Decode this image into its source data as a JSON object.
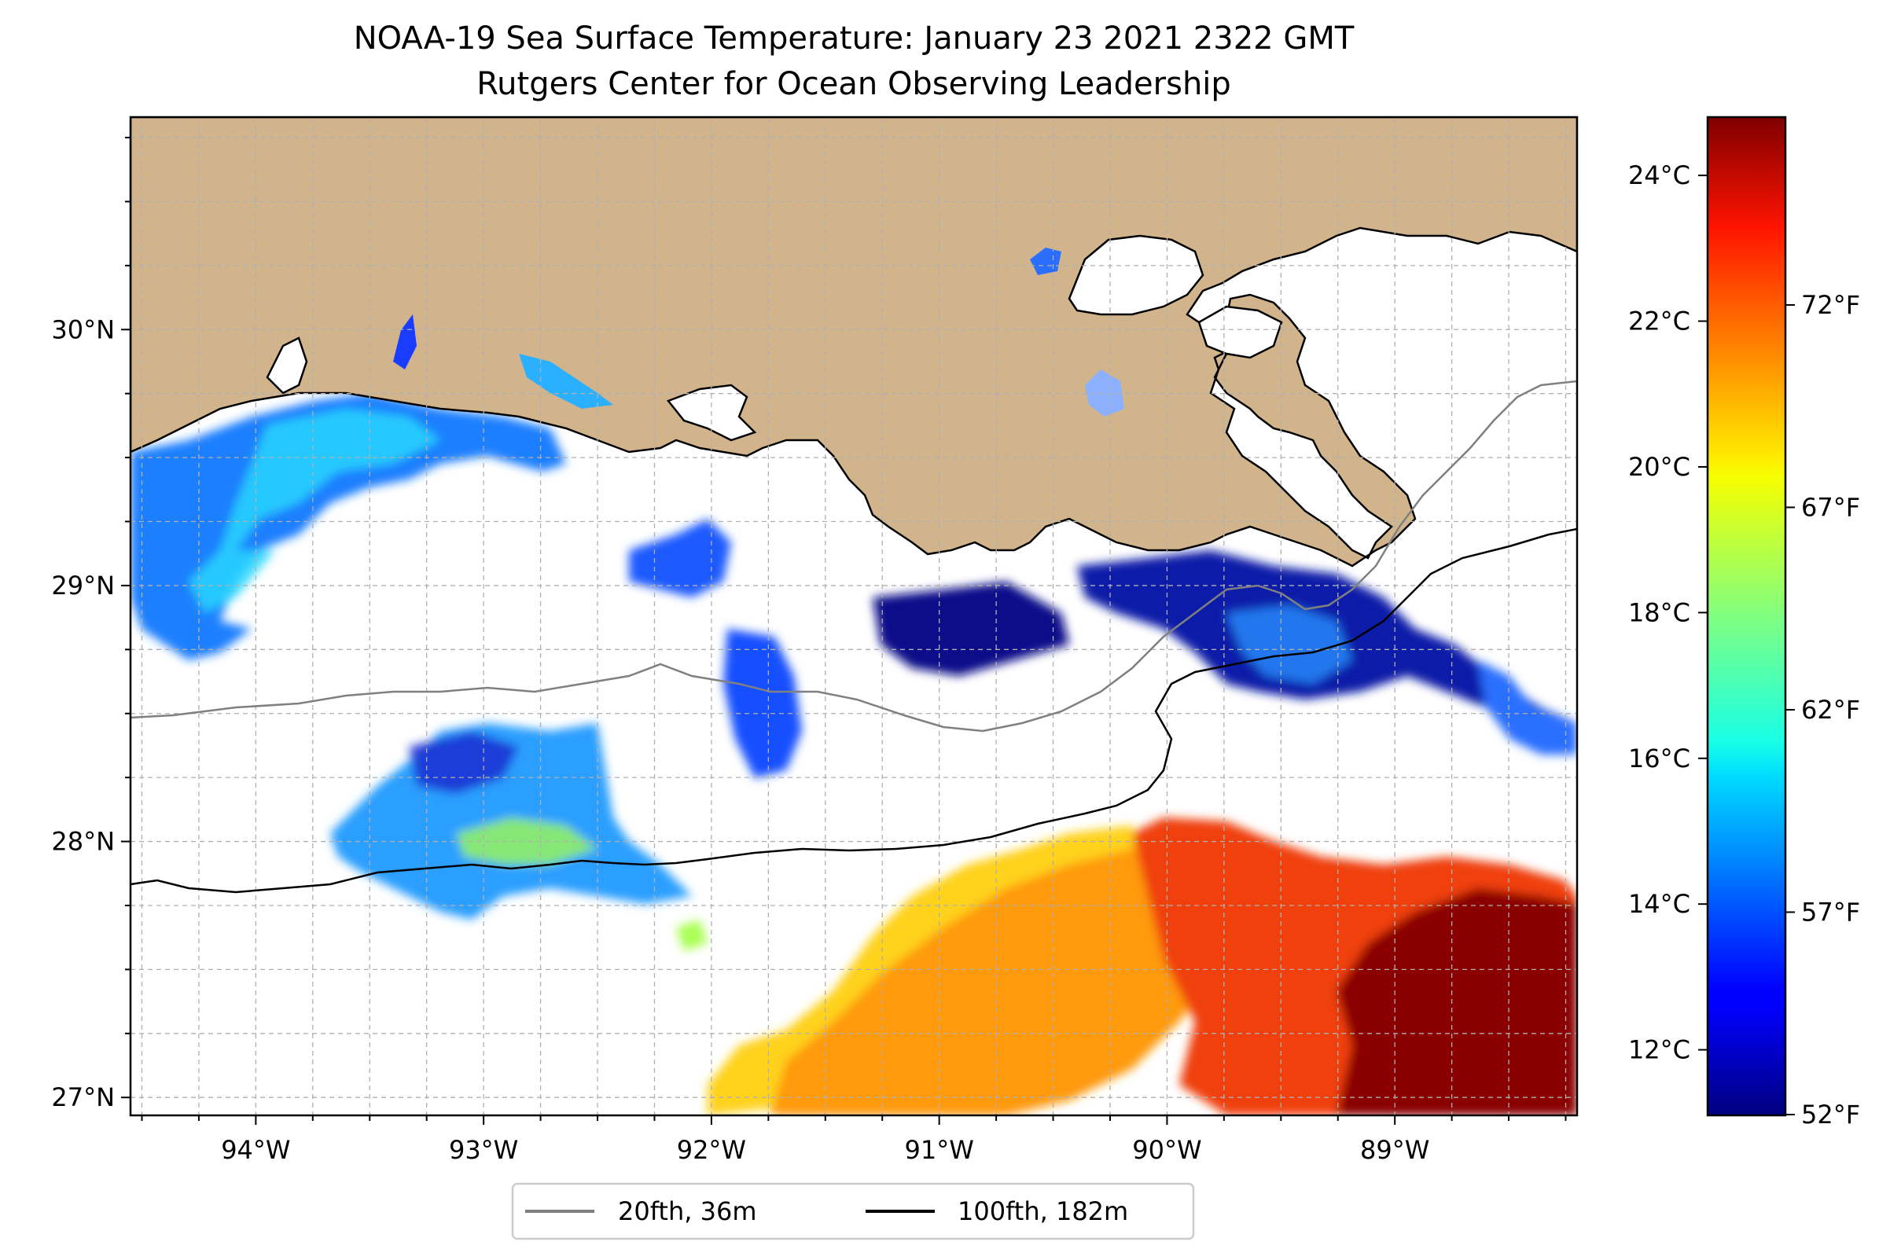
{
  "title_line1": "NOAA-19 Sea Surface Temperature: January 23 2021 2322 GMT",
  "title_line2": "Rutgers Center for Ocean Observing Leadership",
  "colors": {
    "land": "#d2b48c",
    "coast": "#000000",
    "isobath_20": "#808080",
    "isobath_100": "#000000",
    "grid": "#b0b0b0"
  },
  "map": {
    "lon_range": [
      -94.55,
      -88.2
    ],
    "lat_range": [
      26.93,
      30.83
    ],
    "lon_ticks": [
      {
        "value": -94,
        "label": "94°W"
      },
      {
        "value": -93,
        "label": "93°W"
      },
      {
        "value": -92,
        "label": "92°W"
      },
      {
        "value": -91,
        "label": "91°W"
      },
      {
        "value": -90,
        "label": "90°W"
      },
      {
        "value": -89,
        "label": "89°W"
      }
    ],
    "lat_ticks": [
      {
        "value": 27,
        "label": "27°N"
      },
      {
        "value": 28,
        "label": "28°N"
      },
      {
        "value": 29,
        "label": "29°N"
      },
      {
        "value": 30,
        "label": "30°N"
      }
    ]
  },
  "colorbar": {
    "celsius_ticks": [
      {
        "value": 12,
        "label": "12°C"
      },
      {
        "value": 14,
        "label": "14°C"
      },
      {
        "value": 16,
        "label": "16°C"
      },
      {
        "value": 18,
        "label": "18°C"
      },
      {
        "value": 20,
        "label": "20°C"
      },
      {
        "value": 22,
        "label": "22°C"
      },
      {
        "value": 24,
        "label": "24°C"
      }
    ],
    "fahrenheit_ticks": [
      {
        "value": 52,
        "label": "52°F"
      },
      {
        "value": 57,
        "label": "57°F"
      },
      {
        "value": 62,
        "label": "62°F"
      },
      {
        "value": 67,
        "label": "67°F"
      },
      {
        "value": 72,
        "label": "72°F"
      }
    ],
    "range_c": [
      11.1,
      24.8
    ]
  },
  "legend": {
    "items": [
      {
        "label": "20fth, 36m",
        "color": "#808080"
      },
      {
        "label": "100fth, 182m",
        "color": "#000000"
      }
    ]
  }
}
